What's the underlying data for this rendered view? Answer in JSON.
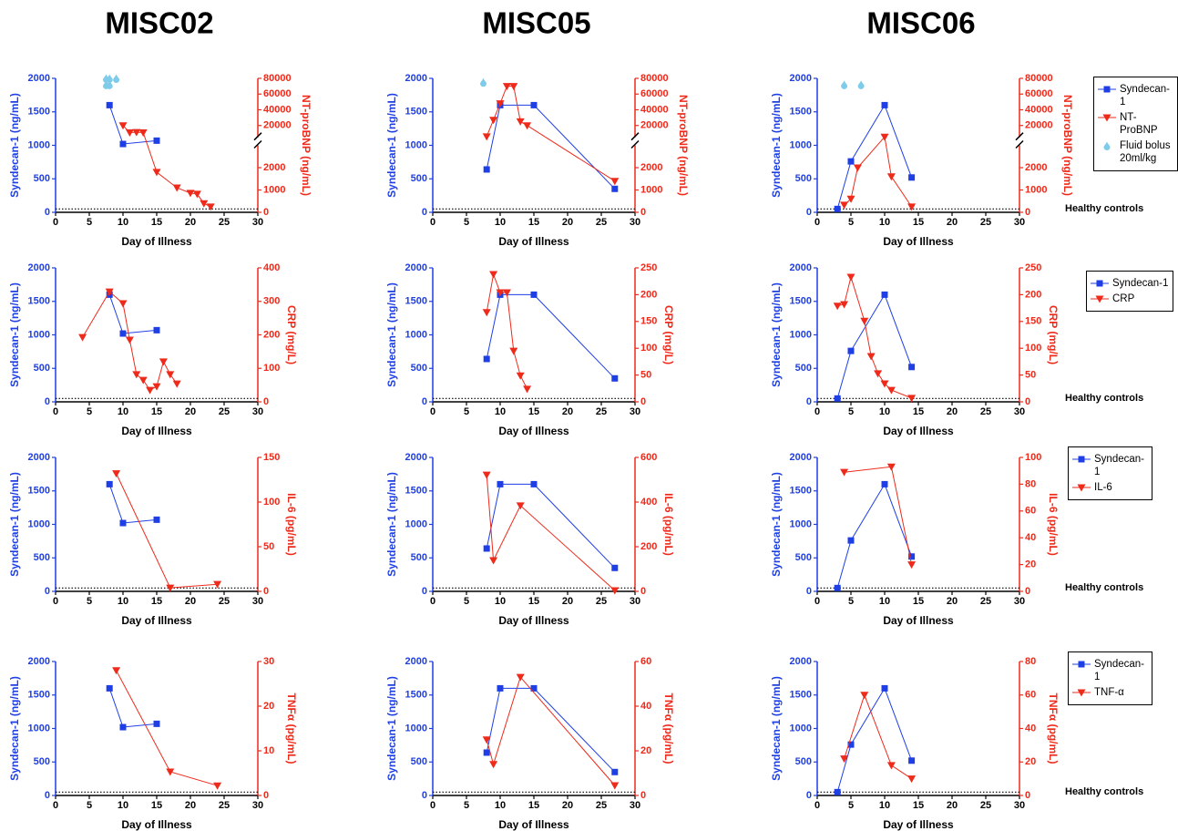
{
  "chart_data": [
    {
      "type": "line",
      "title": "MISC02",
      "xlabel": "Day of Illness",
      "ylabel": "Syndecan-1 (ng/mL)",
      "y2label": "NT-proBNP (ng/mL)",
      "xlim": [
        0,
        30
      ],
      "xticks": [
        0,
        5,
        10,
        15,
        20,
        25,
        30
      ],
      "ylim": [
        0,
        2000
      ],
      "yticks": [
        0,
        500,
        1000,
        1500,
        2000
      ],
      "y2lim": [
        0,
        80000
      ],
      "y2ticks": [
        0,
        1000,
        2000,
        20000,
        40000,
        60000,
        80000
      ],
      "y2break": [
        3000,
        5000
      ],
      "reference_line": {
        "value": 50
      },
      "series": [
        {
          "color": "#1f3fe6",
          "marker": "square",
          "x": [
            8,
            10,
            15
          ],
          "values": [
            1600,
            1020,
            1070
          ]
        },
        {
          "color": "#ee2a1b",
          "marker": "triangle-down",
          "axis": "y2",
          "x": [
            10,
            11,
            12,
            13,
            15,
            18,
            20,
            21,
            22,
            23
          ],
          "values": [
            20000,
            11000,
            11500,
            11000,
            1800,
            1100,
            860,
            820,
            400,
            250
          ]
        },
        {
          "color": "#7ecbea",
          "marker": "drop",
          "axis": "y2",
          "line": false,
          "x": [
            7.5,
            8,
            7.5,
            8,
            9
          ],
          "values": [
            80000,
            80000,
            72000,
            72000,
            80000
          ]
        }
      ]
    },
    {
      "type": "line",
      "title": "MISC05",
      "xlabel": "Day of Illness",
      "ylabel": "Syndecan-1 (ng/mL)",
      "y2label": "NT-proBNP (ng/mL)",
      "xlim": [
        0,
        30
      ],
      "xticks": [
        0,
        5,
        10,
        15,
        20,
        25,
        30
      ],
      "ylim": [
        0,
        2000
      ],
      "yticks": [
        0,
        500,
        1000,
        1500,
        2000
      ],
      "y2lim": [
        0,
        80000
      ],
      "y2ticks": [
        0,
        1000,
        2000,
        20000,
        40000,
        60000,
        80000
      ],
      "y2break": [
        3000,
        5000
      ],
      "reference_line": {
        "value": 50
      },
      "series": [
        {
          "color": "#1f3fe6",
          "marker": "square",
          "x": [
            8,
            10,
            15,
            27
          ],
          "values": [
            640,
            1600,
            1600,
            350
          ]
        },
        {
          "color": "#ee2a1b",
          "marker": "triangle-down",
          "axis": "y2",
          "x": [
            8,
            9,
            10,
            11,
            12,
            13,
            14,
            27
          ],
          "values": [
            6000,
            27000,
            48000,
            70000,
            70000,
            25000,
            20000,
            1400
          ]
        },
        {
          "color": "#7ecbea",
          "marker": "drop",
          "axis": "y2",
          "line": false,
          "x": [
            7.5
          ],
          "values": [
            75000
          ]
        }
      ]
    },
    {
      "type": "line",
      "title": "MISC06",
      "xlabel": "Day of Illness",
      "ylabel": "Syndecan-1 (ng/mL)",
      "y2label": "NT-proBNP (ng/mL)",
      "xlim": [
        0,
        30
      ],
      "xticks": [
        0,
        5,
        10,
        15,
        20,
        25,
        30
      ],
      "ylim": [
        0,
        2000
      ],
      "yticks": [
        0,
        500,
        1000,
        1500,
        2000
      ],
      "y2lim": [
        0,
        80000
      ],
      "y2ticks": [
        0,
        1000,
        2000,
        20000,
        40000,
        60000,
        80000
      ],
      "y2break": [
        3000,
        5000
      ],
      "reference_line": {
        "value": 50,
        "label": "Healthy controls"
      },
      "legend": true,
      "series": [
        {
          "name": "Syndecan-1",
          "color": "#1f3fe6",
          "marker": "square",
          "x": [
            3,
            5,
            10,
            14
          ],
          "values": [
            50,
            760,
            1600,
            520
          ]
        },
        {
          "name": "NT-ProBNP",
          "color": "#ee2a1b",
          "marker": "triangle-down",
          "axis": "y2",
          "x": [
            4,
            5,
            6,
            10,
            11,
            14
          ],
          "values": [
            330,
            600,
            2000,
            5500,
            1600,
            250
          ]
        },
        {
          "name": "Fluid bolus 20ml/kg",
          "color": "#7ecbea",
          "marker": "drop",
          "axis": "y2",
          "line": false,
          "x": [
            4,
            6.5
          ],
          "values": [
            72000,
            72000
          ]
        }
      ]
    },
    {
      "type": "line",
      "xlabel": "Day of Illness",
      "ylabel": "Syndecan-1 (ng/mL)",
      "y2label": "CRP (mg/L)",
      "xlim": [
        0,
        30
      ],
      "xticks": [
        0,
        5,
        10,
        15,
        20,
        25,
        30
      ],
      "ylim": [
        0,
        2000
      ],
      "yticks": [
        0,
        500,
        1000,
        1500,
        2000
      ],
      "y2lim": [
        0,
        400
      ],
      "y2ticks": [
        0,
        100,
        200,
        300,
        400
      ],
      "reference_line": {
        "value": 50
      },
      "series": [
        {
          "color": "#1f3fe6",
          "marker": "square",
          "x": [
            8,
            10,
            15
          ],
          "values": [
            1600,
            1020,
            1070
          ]
        },
        {
          "color": "#ee2a1b",
          "marker": "triangle-down",
          "axis": "y2",
          "x": [
            4,
            8,
            10,
            11,
            12,
            13,
            14,
            15,
            16,
            17,
            18
          ],
          "values": [
            193,
            329,
            294,
            185,
            82,
            65,
            35,
            46,
            120,
            82,
            54
          ]
        }
      ]
    },
    {
      "type": "line",
      "xlabel": "Day of Illness",
      "ylabel": "Syndecan-1 (ng/mL)",
      "y2label": "CRP (mg/L)",
      "xlim": [
        0,
        30
      ],
      "xticks": [
        0,
        5,
        10,
        15,
        20,
        25,
        30
      ],
      "ylim": [
        0,
        2000
      ],
      "yticks": [
        0,
        500,
        1000,
        1500,
        2000
      ],
      "y2lim": [
        0,
        250
      ],
      "y2ticks": [
        0,
        50,
        100,
        150,
        200,
        250
      ],
      "reference_line": {
        "value": 50
      },
      "series": [
        {
          "color": "#1f3fe6",
          "marker": "square",
          "x": [
            8,
            10,
            15,
            27
          ],
          "values": [
            640,
            1600,
            1600,
            350
          ]
        },
        {
          "color": "#ee2a1b",
          "marker": "triangle-down",
          "axis": "y2",
          "x": [
            8,
            9,
            10,
            11,
            12,
            13,
            14
          ],
          "values": [
            167,
            238,
            204,
            204,
            95,
            49,
            24
          ]
        }
      ]
    },
    {
      "type": "line",
      "xlabel": "Day of Illness",
      "ylabel": "Syndecan-1 (ng/mL)",
      "y2label": "CRP (mg/L)",
      "xlim": [
        0,
        30
      ],
      "xticks": [
        0,
        5,
        10,
        15,
        20,
        25,
        30
      ],
      "ylim": [
        0,
        2000
      ],
      "yticks": [
        0,
        500,
        1000,
        1500,
        2000
      ],
      "y2lim": [
        0,
        250
      ],
      "y2ticks": [
        0,
        50,
        100,
        150,
        200,
        250
      ],
      "reference_line": {
        "value": 50,
        "label": "Healthy controls"
      },
      "legend": true,
      "series": [
        {
          "name": "Syndecan-1",
          "color": "#1f3fe6",
          "marker": "square",
          "x": [
            3,
            5,
            10,
            14
          ],
          "values": [
            50,
            760,
            1600,
            520
          ]
        },
        {
          "name": "CRP",
          "color": "#ee2a1b",
          "marker": "triangle-down",
          "axis": "y2",
          "x": [
            3,
            4,
            5,
            7,
            8,
            9,
            10,
            11,
            14
          ],
          "values": [
            179,
            182,
            233,
            151,
            85,
            53,
            34,
            22,
            7
          ]
        }
      ]
    },
    {
      "type": "line",
      "xlabel": "Day of Illness",
      "ylabel": "Syndecan-1 (ng/mL)",
      "y2label": "IL-6 (pg/mL)",
      "xlim": [
        0,
        30
      ],
      "xticks": [
        0,
        5,
        10,
        15,
        20,
        25,
        30
      ],
      "ylim": [
        0,
        2000
      ],
      "yticks": [
        0,
        500,
        1000,
        1500,
        2000
      ],
      "y2lim": [
        0,
        150
      ],
      "y2ticks": [
        0,
        50,
        100,
        150
      ],
      "reference_line": {
        "value": 50
      },
      "series": [
        {
          "color": "#1f3fe6",
          "marker": "square",
          "x": [
            8,
            10,
            15
          ],
          "values": [
            1600,
            1020,
            1070
          ]
        },
        {
          "color": "#ee2a1b",
          "marker": "triangle-down",
          "axis": "y2",
          "x": [
            9,
            17,
            24
          ],
          "values": [
            132,
            4,
            8
          ]
        }
      ]
    },
    {
      "type": "line",
      "xlabel": "Day of Illness",
      "ylabel": "Syndecan-1 (ng/mL)",
      "y2label": "IL-6 (pg/mL)",
      "xlim": [
        0,
        30
      ],
      "xticks": [
        0,
        5,
        10,
        15,
        20,
        25,
        30
      ],
      "ylim": [
        0,
        2000
      ],
      "yticks": [
        0,
        500,
        1000,
        1500,
        2000
      ],
      "y2lim": [
        0,
        600
      ],
      "y2ticks": [
        0,
        200,
        400,
        600
      ],
      "reference_line": {
        "value": 50
      },
      "series": [
        {
          "color": "#1f3fe6",
          "marker": "square",
          "x": [
            8,
            10,
            15,
            27
          ],
          "values": [
            640,
            1600,
            1600,
            350
          ]
        },
        {
          "color": "#ee2a1b",
          "marker": "triangle-down",
          "axis": "y2",
          "x": [
            8,
            9,
            13,
            27
          ],
          "values": [
            522,
            139,
            384,
            4
          ]
        }
      ]
    },
    {
      "type": "line",
      "xlabel": "Day of Illness",
      "ylabel": "Syndecan-1 (ng/mL)",
      "y2label": "IL-6 (pg/mL)",
      "xlim": [
        0,
        30
      ],
      "xticks": [
        0,
        5,
        10,
        15,
        20,
        25,
        30
      ],
      "ylim": [
        0,
        2000
      ],
      "yticks": [
        0,
        500,
        1000,
        1500,
        2000
      ],
      "y2lim": [
        0,
        100
      ],
      "y2ticks": [
        0,
        20,
        40,
        60,
        80,
        100
      ],
      "reference_line": {
        "value": 50,
        "label": "Healthy controls"
      },
      "legend": true,
      "series": [
        {
          "name": "Syndecan-1",
          "color": "#1f3fe6",
          "marker": "square",
          "x": [
            3,
            5,
            10,
            14
          ],
          "values": [
            50,
            760,
            1600,
            520
          ]
        },
        {
          "name": "IL-6",
          "color": "#ee2a1b",
          "marker": "triangle-down",
          "axis": "y2",
          "x": [
            4,
            11,
            14
          ],
          "values": [
            89,
            93,
            20
          ]
        }
      ]
    },
    {
      "type": "line",
      "xlabel": "Day of Illness",
      "ylabel": "Syndecan-1 (ng/mL)",
      "y2label": "TNFα (pg/mL)",
      "xlim": [
        0,
        30
      ],
      "xticks": [
        0,
        5,
        10,
        15,
        20,
        25,
        30
      ],
      "ylim": [
        0,
        2000
      ],
      "yticks": [
        0,
        500,
        1000,
        1500,
        2000
      ],
      "y2lim": [
        0,
        30
      ],
      "y2ticks": [
        0,
        10,
        20,
        30
      ],
      "reference_line": {
        "value": 50
      },
      "series": [
        {
          "color": "#1f3fe6",
          "marker": "square",
          "x": [
            8,
            10,
            15
          ],
          "values": [
            1600,
            1020,
            1070
          ]
        },
        {
          "color": "#ee2a1b",
          "marker": "triangle-down",
          "axis": "y2",
          "x": [
            9,
            17,
            24
          ],
          "values": [
            28,
            5.3,
            2.2
          ]
        }
      ]
    },
    {
      "type": "line",
      "xlabel": "Day of Illness",
      "ylabel": "Syndecan-1 (ng/mL)",
      "y2label": "TNFα (pg/mL)",
      "xlim": [
        0,
        30
      ],
      "xticks": [
        0,
        5,
        10,
        15,
        20,
        25,
        30
      ],
      "ylim": [
        0,
        2000
      ],
      "yticks": [
        0,
        500,
        1000,
        1500,
        2000
      ],
      "y2lim": [
        0,
        60
      ],
      "y2ticks": [
        0,
        20,
        40,
        60
      ],
      "reference_line": {
        "value": 50
      },
      "series": [
        {
          "color": "#1f3fe6",
          "marker": "square",
          "x": [
            8,
            10,
            15,
            27
          ],
          "values": [
            640,
            1600,
            1600,
            350
          ]
        },
        {
          "color": "#ee2a1b",
          "marker": "triangle-down",
          "axis": "y2",
          "x": [
            8,
            9,
            13,
            27
          ],
          "values": [
            25,
            14,
            53,
            4.5
          ]
        }
      ]
    },
    {
      "type": "line",
      "xlabel": "Day of Illness",
      "ylabel": "Syndecan-1 (ng/mL)",
      "y2label": "TNFα (pg/mL)",
      "xlim": [
        0,
        30
      ],
      "xticks": [
        0,
        5,
        10,
        15,
        20,
        25,
        30
      ],
      "ylim": [
        0,
        2000
      ],
      "yticks": [
        0,
        500,
        1000,
        1500,
        2000
      ],
      "y2lim": [
        0,
        80
      ],
      "y2ticks": [
        0,
        20,
        40,
        60,
        80
      ],
      "reference_line": {
        "value": 50,
        "label": "Healthy controls"
      },
      "legend": true,
      "series": [
        {
          "name": "Syndecan-1",
          "color": "#1f3fe6",
          "marker": "square",
          "x": [
            3,
            5,
            10,
            14
          ],
          "values": [
            50,
            760,
            1600,
            520
          ]
        },
        {
          "name": "TNF-α",
          "color": "#ee2a1b",
          "marker": "triangle-down",
          "axis": "y2",
          "x": [
            4,
            7,
            11,
            14
          ],
          "values": [
            22,
            60,
            18,
            10
          ]
        }
      ]
    }
  ]
}
